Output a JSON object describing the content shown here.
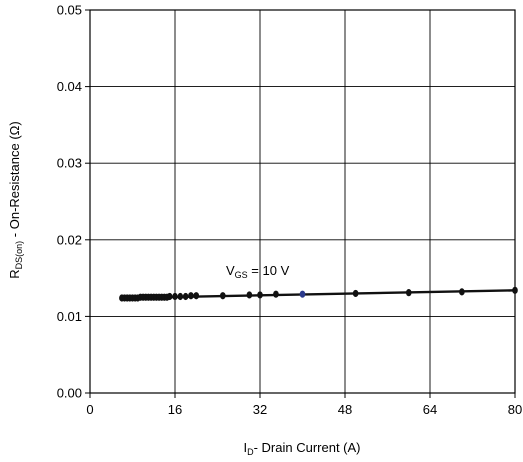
{
  "chart_data": {
    "type": "line",
    "xlabel": {
      "symbol": "I",
      "subscript": "D",
      "text": "- Drain Current (A)"
    },
    "ylabel": {
      "symbol": "R",
      "subscript": "DS(on)",
      "text": " - On-Resistance (Ω)"
    },
    "annotation": {
      "symbol": "V",
      "subscript": "GS",
      "text": " = 10 V"
    },
    "xlim": [
      0,
      80
    ],
    "ylim": [
      0,
      0.05
    ],
    "x_ticks": [
      {
        "value": 0,
        "label": "0"
      },
      {
        "value": 16,
        "label": "16"
      },
      {
        "value": 32,
        "label": "32"
      },
      {
        "value": 48,
        "label": "48"
      },
      {
        "value": 64,
        "label": "64"
      },
      {
        "value": 80,
        "label": "80"
      }
    ],
    "y_ticks": [
      {
        "value": 0,
        "label": "0.00"
      },
      {
        "value": 0.01,
        "label": "0.01"
      },
      {
        "value": 0.02,
        "label": "0.02"
      },
      {
        "value": 0.03,
        "label": "0.03"
      },
      {
        "value": 0.04,
        "label": "0.04"
      },
      {
        "value": 0.05,
        "label": "0.05"
      }
    ],
    "grid": true,
    "series": [
      {
        "color": "#111111",
        "highlight_color": "#2b3a8c",
        "highlight_index": 28,
        "points": [
          {
            "x": 6,
            "y": 0.0124
          },
          {
            "x": 6.5,
            "y": 0.0124
          },
          {
            "x": 7,
            "y": 0.0124
          },
          {
            "x": 7.5,
            "y": 0.0124
          },
          {
            "x": 8,
            "y": 0.0124
          },
          {
            "x": 8.5,
            "y": 0.0124
          },
          {
            "x": 9,
            "y": 0.0124
          },
          {
            "x": 9.5,
            "y": 0.0125
          },
          {
            "x": 10,
            "y": 0.0125
          },
          {
            "x": 10.5,
            "y": 0.0125
          },
          {
            "x": 11,
            "y": 0.0125
          },
          {
            "x": 11.5,
            "y": 0.0125
          },
          {
            "x": 12,
            "y": 0.0125
          },
          {
            "x": 12.5,
            "y": 0.0125
          },
          {
            "x": 13,
            "y": 0.0125
          },
          {
            "x": 13.5,
            "y": 0.0125
          },
          {
            "x": 14,
            "y": 0.0125
          },
          {
            "x": 14.5,
            "y": 0.0125
          },
          {
            "x": 15,
            "y": 0.0126
          },
          {
            "x": 16,
            "y": 0.0126
          },
          {
            "x": 17,
            "y": 0.0126
          },
          {
            "x": 18,
            "y": 0.0126
          },
          {
            "x": 19,
            "y": 0.0127
          },
          {
            "x": 20,
            "y": 0.0127
          },
          {
            "x": 25,
            "y": 0.0127
          },
          {
            "x": 30,
            "y": 0.0128
          },
          {
            "x": 32,
            "y": 0.0128
          },
          {
            "x": 35,
            "y": 0.0129
          },
          {
            "x": 40,
            "y": 0.0129
          },
          {
            "x": 50,
            "y": 0.013
          },
          {
            "x": 60,
            "y": 0.0131
          },
          {
            "x": 70,
            "y": 0.0132
          },
          {
            "x": 80,
            "y": 0.0134
          }
        ]
      }
    ]
  }
}
